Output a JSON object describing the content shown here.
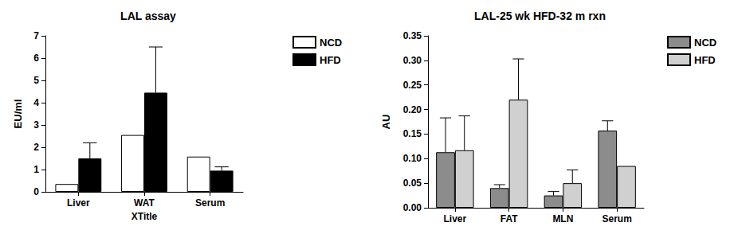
{
  "chart_data": [
    {
      "type": "bar",
      "title": "LAL assay",
      "x_label": "XTitle",
      "y_label": "EU/ml",
      "categories": [
        "Liver",
        "WAT",
        "Serum"
      ],
      "series": [
        {
          "name": "NCD",
          "color": "#ffffff",
          "values": [
            0.35,
            2.55,
            1.58
          ],
          "errors": [
            null,
            null,
            null
          ]
        },
        {
          "name": "HFD",
          "color": "#000000",
          "values": [
            1.5,
            4.45,
            0.95
          ],
          "errors": [
            0.7,
            2.05,
            0.17
          ]
        }
      ],
      "ylim": [
        0,
        7
      ],
      "yticks": [
        0,
        1,
        2,
        3,
        4,
        5,
        6,
        7
      ],
      "grid": false,
      "legend": "right"
    },
    {
      "type": "bar",
      "title": "LAL-25 wk HFD-32 m rxn",
      "y_label": "AU",
      "categories": [
        "Liver",
        "FAT",
        "MLN",
        "Serum"
      ],
      "series": [
        {
          "name": "NCD",
          "color": "#8c8c8c",
          "values": [
            0.113,
            0.04,
            0.025,
            0.157
          ],
          "errors": [
            0.07,
            0.007,
            0.008,
            0.02
          ]
        },
        {
          "name": "HFD",
          "color": "#d0d0d0",
          "values": [
            0.117,
            0.22,
            0.05,
            0.085
          ],
          "errors": [
            0.07,
            0.083,
            0.027,
            null
          ]
        }
      ],
      "ylim": [
        0,
        0.35
      ],
      "yticks": [
        {
          "value": 0,
          "label": "0.00"
        },
        {
          "value": 0.05,
          "label": "0.05"
        },
        {
          "value": 0.1,
          "label": "0.10"
        },
        {
          "value": 0.15,
          "label": "0.15"
        },
        {
          "value": 0.2,
          "label": "0.20"
        },
        {
          "value": 0.25,
          "label": "0.25"
        },
        {
          "value": 0.3,
          "label": "0.30"
        },
        {
          "value": 0.35,
          "label": "0.35"
        }
      ],
      "grid": false,
      "legend": "right"
    }
  ]
}
